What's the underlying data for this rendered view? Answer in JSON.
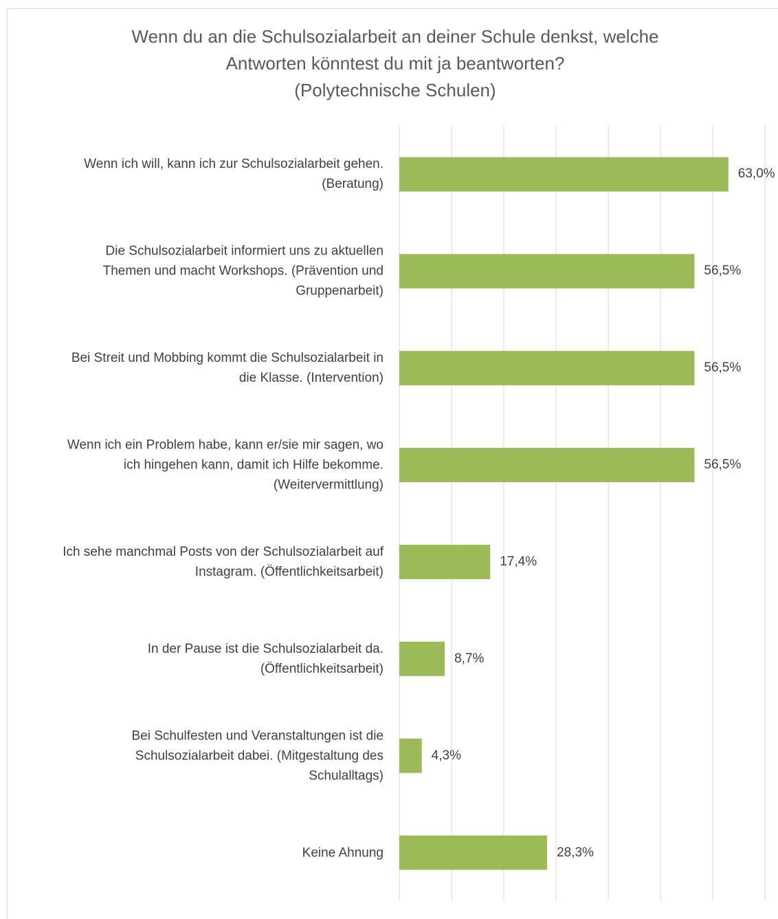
{
  "chart_data": {
    "type": "bar",
    "orientation": "horizontal",
    "title": "Wenn du an die Schulsozialarbeit an deiner Schule denkst, welche\nAntworten könntest du mit ja beantworten?\n(Polytechnische Schulen)",
    "categories": [
      "Wenn ich will, kann ich zur Schulsozialarbeit gehen.\n(Beratung)",
      "Die Schulsozialarbeit informiert uns zu aktuellen\nThemen und macht Workshops. (Prävention und\nGruppenarbeit)",
      "Bei Streit und Mobbing kommt die Schulsozialarbeit in\ndie Klasse. (Intervention)",
      "Wenn ich ein Problem habe, kann er/sie mir sagen, wo\nich hingehen kann, damit ich Hilfe bekomme.\n(Weitervermittlung)",
      "Ich sehe manchmal Posts von der Schulsozialarbeit auf\nInstagram. (Öffentlichkeitsarbeit)",
      "In der Pause ist die Schulsozialarbeit da.\n(Öffentlichkeitsarbeit)",
      "Bei Schulfesten und Veranstaltungen ist die\nSchulsozialarbeit dabei. (Mitgestaltung des\nSchulalltags)",
      "Keine Ahnung"
    ],
    "values": [
      63.0,
      56.5,
      56.5,
      56.5,
      17.4,
      8.7,
      4.3,
      28.3
    ],
    "value_labels": [
      "63,0%",
      "56,5%",
      "56,5%",
      "56,5%",
      "17,4%",
      "8,7%",
      "4,3%",
      "28,3%"
    ],
    "color": "#9bbb59",
    "xlim": [
      0,
      70
    ],
    "xticks": [
      0,
      10,
      20,
      30,
      40,
      50,
      60,
      70
    ],
    "grid": true
  }
}
